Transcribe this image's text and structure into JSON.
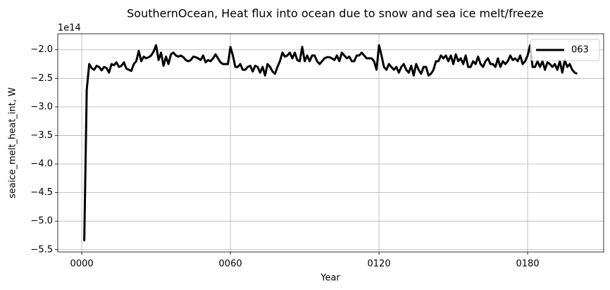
{
  "chart_data": {
    "type": "line",
    "title": "SouthernOcean, Heat flux into ocean due to snow and sea ice melt/freeze",
    "x_label": "Year",
    "y_label": "seaice_melt_heat_int, W",
    "y_offset_label": "1e14",
    "x": [
      1,
      2,
      3,
      4,
      5,
      6,
      7,
      8,
      9,
      10,
      11,
      12,
      13,
      14,
      15,
      16,
      17,
      18,
      19,
      20,
      21,
      22,
      23,
      24,
      25,
      26,
      27,
      28,
      29,
      30,
      31,
      32,
      33,
      34,
      35,
      36,
      37,
      38,
      39,
      40,
      41,
      42,
      43,
      44,
      45,
      46,
      47,
      48,
      49,
      50,
      51,
      52,
      53,
      54,
      55,
      56,
      57,
      58,
      59,
      60,
      61,
      62,
      63,
      64,
      65,
      66,
      67,
      68,
      69,
      70,
      71,
      72,
      73,
      74,
      75,
      76,
      77,
      78,
      79,
      80,
      81,
      82,
      83,
      84,
      85,
      86,
      87,
      88,
      89,
      90,
      91,
      92,
      93,
      94,
      95,
      96,
      97,
      98,
      99,
      100,
      101,
      102,
      103,
      104,
      105,
      106,
      107,
      108,
      109,
      110,
      111,
      112,
      113,
      114,
      115,
      116,
      117,
      118,
      119,
      120,
      121,
      122,
      123,
      124,
      125,
      126,
      127,
      128,
      129,
      130,
      131,
      132,
      133,
      134,
      135,
      136,
      137,
      138,
      139,
      140,
      141,
      142,
      143,
      144,
      145,
      146,
      147,
      148,
      149,
      150,
      151,
      152,
      153,
      154,
      155,
      156,
      157,
      158,
      159,
      160,
      161,
      162,
      163,
      164,
      165,
      166,
      167,
      168,
      169,
      170,
      171,
      172,
      173,
      174,
      175,
      176,
      177,
      178,
      179,
      180,
      181,
      182,
      183,
      184,
      185,
      186,
      187,
      188,
      189,
      190,
      191,
      192,
      193,
      194,
      195,
      196,
      197,
      198,
      199,
      200
    ],
    "series": [
      {
        "name": "063",
        "color": "#000000",
        "values": [
          -5.35,
          -2.7,
          -2.25,
          -2.32,
          -2.35,
          -2.28,
          -2.3,
          -2.36,
          -2.3,
          -2.32,
          -2.4,
          -2.25,
          -2.27,
          -2.22,
          -2.3,
          -2.28,
          -2.22,
          -2.33,
          -2.35,
          -2.37,
          -2.25,
          -2.2,
          -2.02,
          -2.2,
          -2.12,
          -2.15,
          -2.13,
          -2.1,
          -2.03,
          -1.92,
          -2.18,
          -2.05,
          -2.28,
          -2.12,
          -2.25,
          -2.08,
          -2.05,
          -2.1,
          -2.12,
          -2.1,
          -2.13,
          -2.18,
          -2.2,
          -2.18,
          -2.12,
          -2.13,
          -2.15,
          -2.18,
          -2.1,
          -2.22,
          -2.18,
          -2.2,
          -2.15,
          -2.08,
          -2.15,
          -2.22,
          -2.25,
          -2.25,
          -2.25,
          -1.95,
          -2.1,
          -2.3,
          -2.3,
          -2.25,
          -2.35,
          -2.35,
          -2.3,
          -2.28,
          -2.38,
          -2.28,
          -2.3,
          -2.4,
          -2.3,
          -2.45,
          -2.25,
          -2.3,
          -2.38,
          -2.42,
          -2.3,
          -2.2,
          -2.05,
          -2.12,
          -2.1,
          -2.05,
          -2.15,
          -2.05,
          -2.18,
          -2.2,
          -1.95,
          -2.2,
          -2.1,
          -2.2,
          -2.1,
          -2.1,
          -2.2,
          -2.25,
          -2.2,
          -2.15,
          -2.13,
          -2.13,
          -2.15,
          -2.18,
          -2.1,
          -2.2,
          -2.05,
          -2.1,
          -2.15,
          -2.12,
          -2.2,
          -2.2,
          -2.1,
          -2.1,
          -2.05,
          -2.1,
          -2.15,
          -2.15,
          -2.15,
          -2.2,
          -2.35,
          -1.92,
          -2.1,
          -2.3,
          -2.35,
          -2.25,
          -2.3,
          -2.35,
          -2.3,
          -2.4,
          -2.3,
          -2.25,
          -2.35,
          -2.4,
          -2.28,
          -2.45,
          -2.25,
          -2.35,
          -2.42,
          -2.3,
          -2.3,
          -2.45,
          -2.42,
          -2.35,
          -2.2,
          -2.2,
          -2.1,
          -2.15,
          -2.1,
          -2.2,
          -2.1,
          -2.25,
          -2.08,
          -2.2,
          -2.15,
          -2.25,
          -2.1,
          -2.3,
          -2.3,
          -2.2,
          -2.25,
          -2.12,
          -2.25,
          -2.3,
          -2.2,
          -2.15,
          -2.25,
          -2.25,
          -2.3,
          -2.15,
          -2.3,
          -2.2,
          -2.25,
          -2.2,
          -2.1,
          -2.18,
          -2.15,
          -2.2,
          -2.1,
          -2.25,
          -2.2,
          -2.1,
          -1.92,
          -2.3,
          -2.3,
          -2.2,
          -2.3,
          -2.2,
          -2.35,
          -2.22,
          -2.25,
          -2.3,
          -2.25,
          -2.35,
          -2.2,
          -2.4,
          -2.18,
          -2.3,
          -2.25,
          -2.35,
          -2.4,
          -2.42
        ]
      }
    ],
    "xlim": [
      -9.7,
      210.7
    ],
    "xticks": [
      {
        "value": 0,
        "label": "0000"
      },
      {
        "value": 60,
        "label": "0060"
      },
      {
        "value": 120,
        "label": "0120"
      },
      {
        "value": 180,
        "label": "0180"
      }
    ],
    "ylim": [
      -5.54,
      -1.72
    ],
    "yticks": [
      {
        "value": -5.5,
        "label": "−5.5"
      },
      {
        "value": -5,
        "label": "−5.0"
      },
      {
        "value": -4.5,
        "label": "−4.5"
      },
      {
        "value": -4,
        "label": "−4.0"
      },
      {
        "value": -3.5,
        "label": "−3.5"
      },
      {
        "value": -3,
        "label": "−3.0"
      },
      {
        "value": -2.5,
        "label": "−2.5"
      },
      {
        "value": -2,
        "label": "−2.0"
      }
    ],
    "grid": true,
    "legend_position": "upper right"
  }
}
